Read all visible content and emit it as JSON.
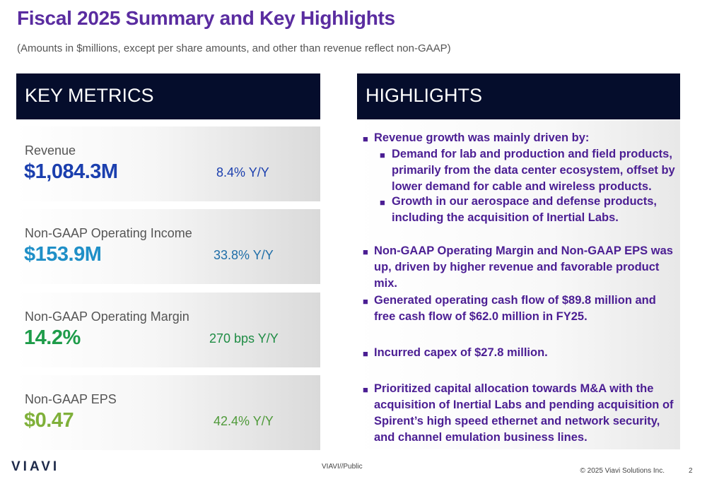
{
  "page": {
    "title": "Fiscal 2025 Summary and Key Highlights",
    "subtitle": "(Amounts in $millions, except per share amounts, and other than revenue reflect non-GAAP)"
  },
  "key_metrics": {
    "header": "KEY METRICS",
    "metrics": [
      {
        "label": "Revenue",
        "value": "$1,084.3M",
        "change": "8.4% Y/Y",
        "value_color": "#1b3fae",
        "change_color": "#1b3fae"
      },
      {
        "label": "Non-GAAP Operating Income",
        "value": "$153.9M",
        "change": "33.8% Y/Y",
        "value_color": "#1f8fc7",
        "change_color": "#1f6ea8"
      },
      {
        "label": "Non-GAAP Operating Margin",
        "value": "14.2%",
        "change": "270 bps Y/Y",
        "value_color": "#1e9c4a",
        "change_color": "#1e8c44"
      },
      {
        "label": "Non-GAAP EPS",
        "value": "$0.47",
        "change": "42.4% Y/Y",
        "value_color": "#7fb03a",
        "change_color": "#4f9a3a"
      }
    ]
  },
  "highlights": {
    "header": "HIGHLIGHTS",
    "items": [
      {
        "text": "Revenue growth was mainly driven by:"
      },
      {
        "text": "Demand for lab and production and field products, primarily from the data center ecosystem, offset by lower demand for cable and wireless products."
      },
      {
        "text": "Growth in our aerospace and defense products, including the acquisition of Inertial Labs."
      },
      {
        "text": "Non-GAAP Operating Margin and Non-GAAP EPS was up, driven by higher revenue and favorable product mix."
      },
      {
        "text": "Generated operating cash flow of $89.8 million and free cash flow of $62.0 million in FY25."
      },
      {
        "text": "Incurred capex of $27.8 million."
      },
      {
        "text": "Prioritized capital allocation towards M&A with the acquisition of Inertial Labs and pending acquisition of Spirent’s high speed ethernet and network security, and channel emulation business lines."
      }
    ]
  },
  "footer": {
    "logo": "VIAVI",
    "classification": "VIAVI//Public",
    "copyright": "© 2025 Viavi Solutions Inc.",
    "page_number": "2"
  }
}
